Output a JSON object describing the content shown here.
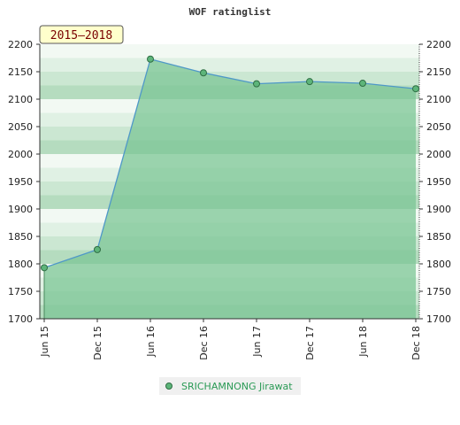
{
  "chart_data": {
    "type": "area",
    "title": "WOF ratinglist",
    "badge": "2015–2018",
    "xlabel": "",
    "ylabel": "",
    "categories": [
      "Jun 15",
      "Dec 15",
      "Jun 16",
      "Dec 16",
      "Jun 17",
      "Dec 17",
      "Jun 18",
      "Dec 18"
    ],
    "ylim": [
      1700,
      2200
    ],
    "yticks": [
      1700,
      1750,
      1800,
      1850,
      1900,
      1950,
      2000,
      2050,
      2100,
      2150,
      2200
    ],
    "series": [
      {
        "name": "SRICHAMNONG Jirawat",
        "values": [
          1793,
          1826,
          2173,
          2148,
          2128,
          2132,
          2129,
          2119
        ]
      }
    ],
    "legend_position": "bottom-center",
    "grid": true
  },
  "colors": {
    "band_dark": "#c3e4cc",
    "band_light": "#f1f8f2",
    "fill": "#7cc596",
    "line": "#4f98c8",
    "marker": "#5db57a",
    "badge_bg": "#ffffcc"
  }
}
